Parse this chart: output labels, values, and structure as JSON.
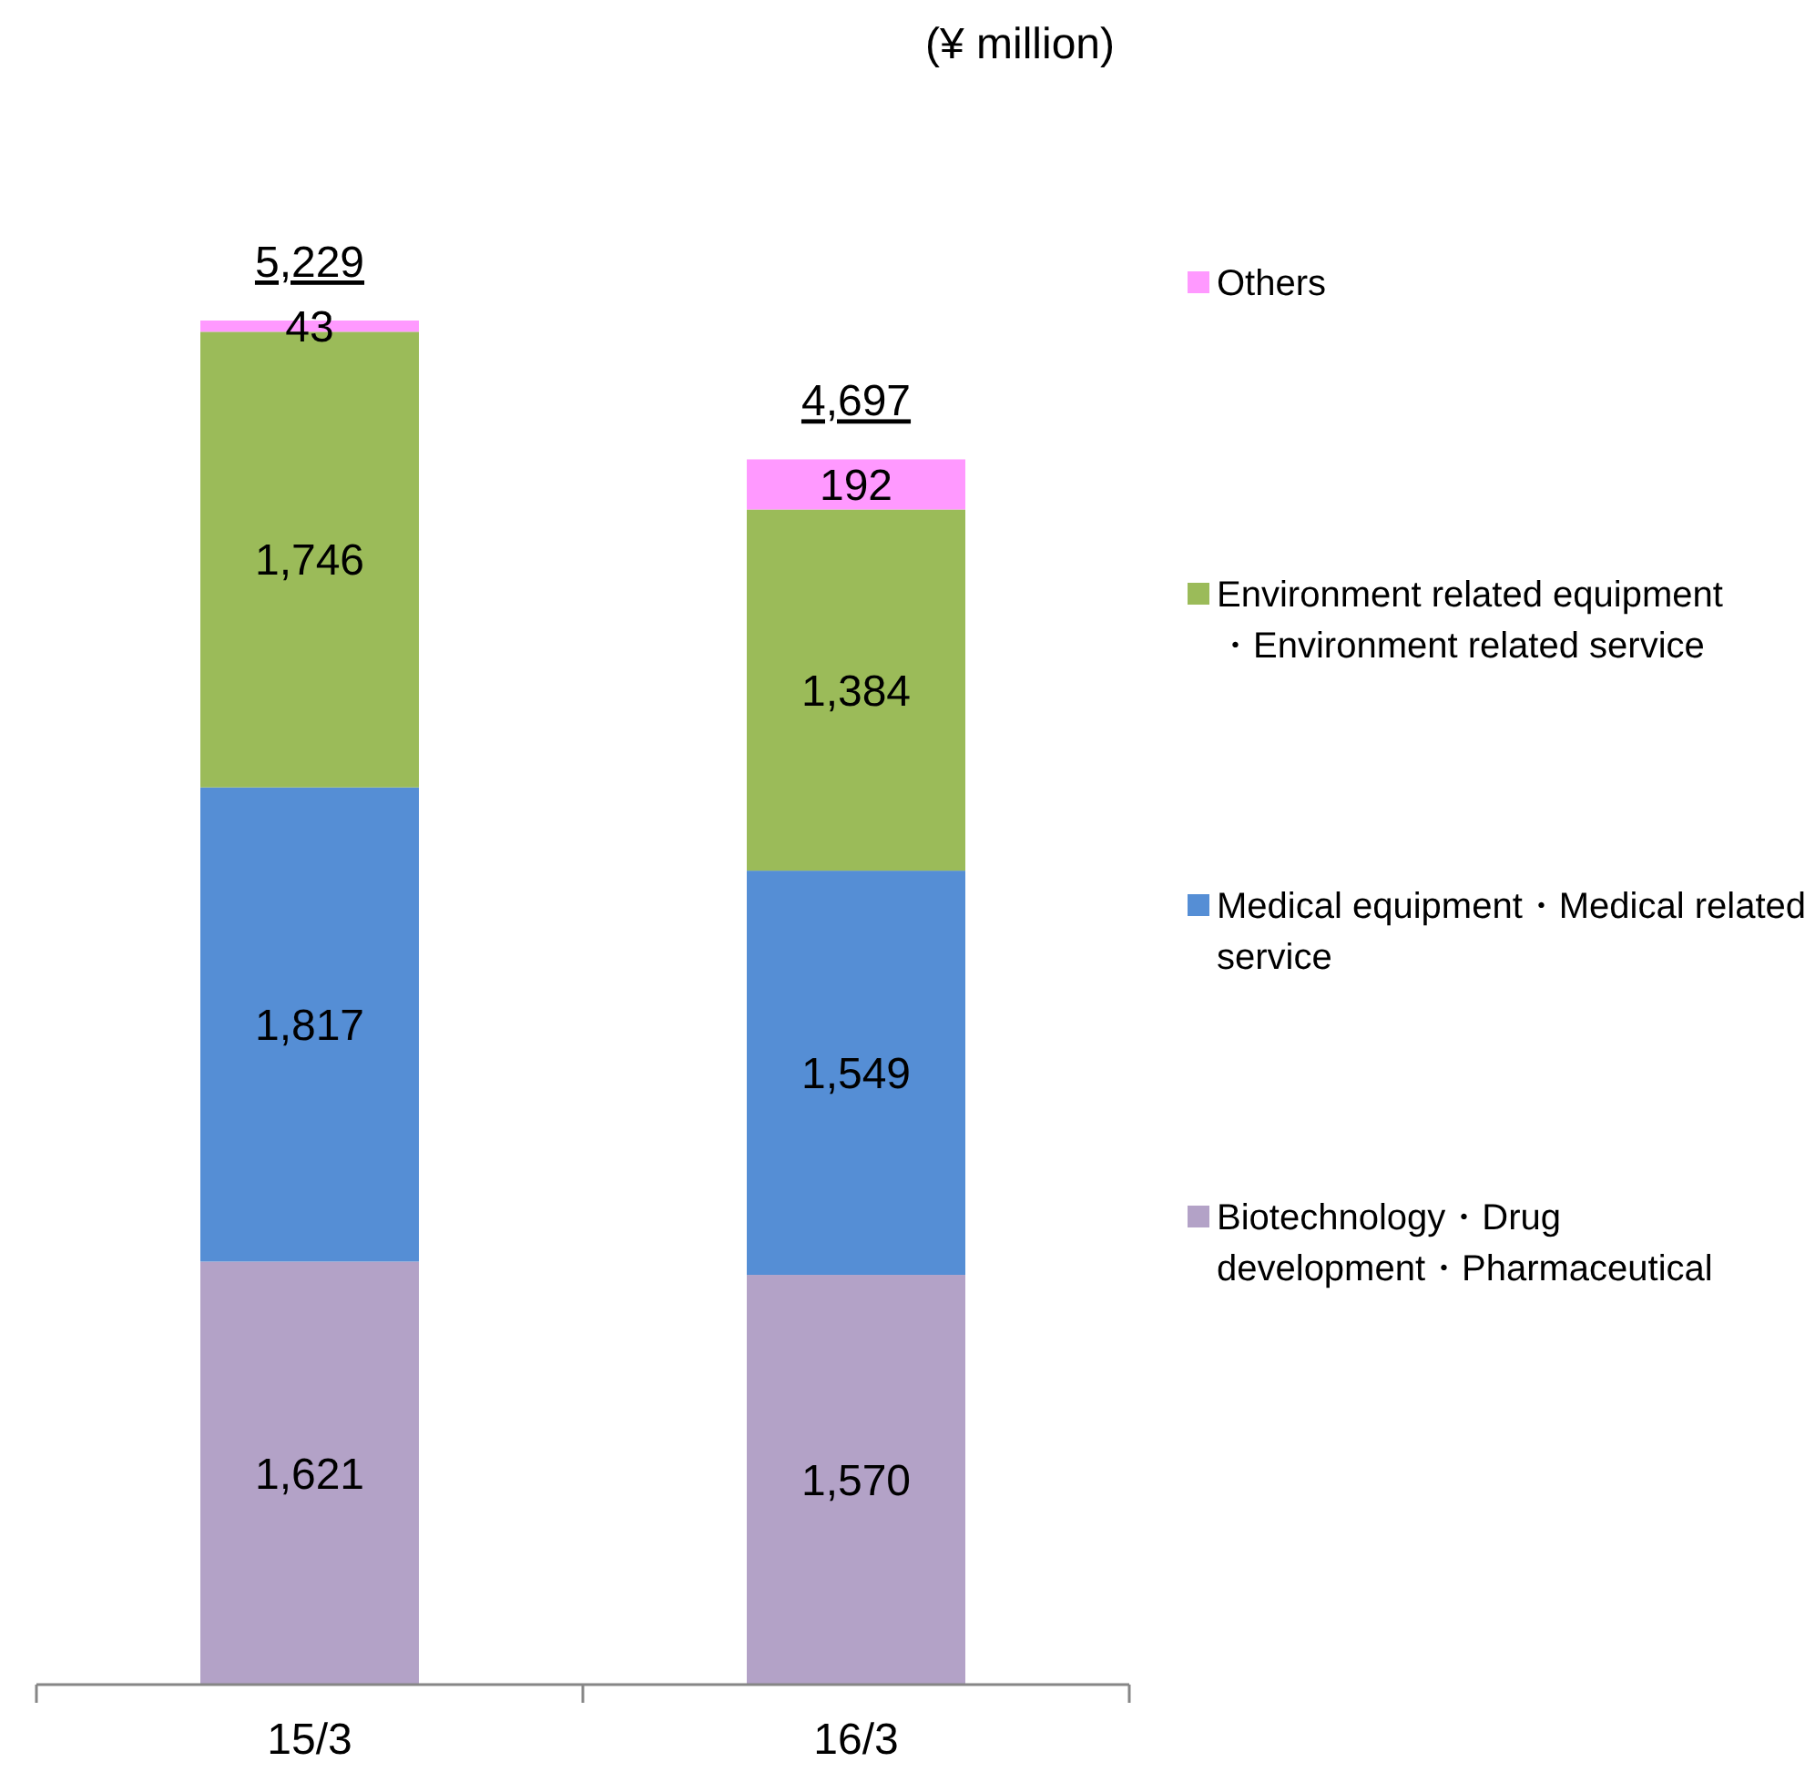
{
  "chart_data": {
    "type": "bar",
    "stacked": true,
    "categories": [
      "15/3",
      "16/3"
    ],
    "legend": "right",
    "annotations": [
      "(¥ million)"
    ],
    "totals": [
      "5,229",
      "4,697"
    ],
    "series": [
      {
        "name": "Biotechnology・Drug development・Pharmaceutical",
        "color": "#b3a2c7",
        "values": [
          1621,
          1570
        ],
        "value_labels": [
          "1,621",
          "1,570"
        ]
      },
      {
        "name": "Medical equipment・Medical related service",
        "color": "#558ed5",
        "values": [
          1817,
          1549
        ],
        "value_labels": [
          "1,817",
          "1,549"
        ]
      },
      {
        "name": "Environment related equipment ・Environment related service",
        "color": "#9bbb59",
        "values": [
          1746,
          1384
        ],
        "value_labels": [
          "1,746",
          "1,384"
        ]
      },
      {
        "name": "Others",
        "color": "#ff99ff",
        "values": [
          43,
          192
        ],
        "value_labels": [
          "43",
          "192"
        ]
      }
    ]
  }
}
